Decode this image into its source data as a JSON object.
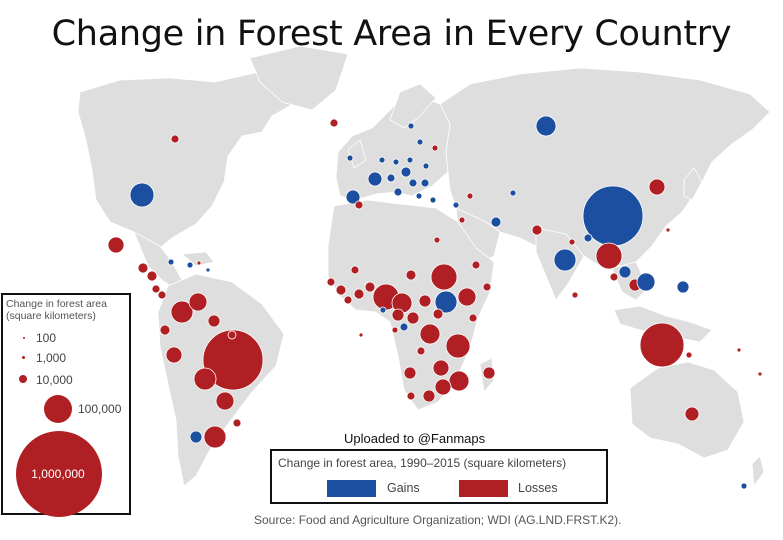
{
  "title": "Change in Forest Area in Every Country",
  "watermark": "Uploaded to @Fanmaps",
  "source": "Source: Food and Agriculture Organization; WDI (AG.LND.FRST.K2).",
  "colors": {
    "gains": "#1d4fa0",
    "losses": "#b01f24",
    "land": "#dedede",
    "background": "#ffffff"
  },
  "size_legend": {
    "title_line1": "Change in forest area",
    "title_line2": "(square kilometers)",
    "entries": [
      "100",
      "1,000",
      "10,000",
      "100,000",
      "1,000,000"
    ]
  },
  "color_legend": {
    "title": "Change in forest area, 1990–2015 (square kilometers)",
    "gains_label": "Gains",
    "losses_label": "Losses"
  }
}
